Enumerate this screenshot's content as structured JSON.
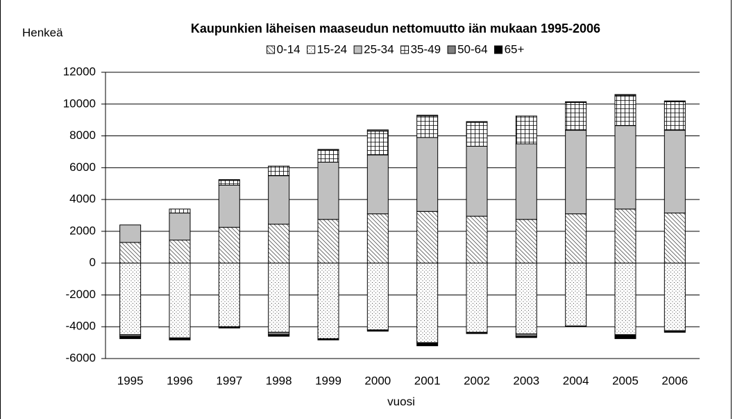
{
  "chart_data": {
    "type": "bar",
    "stacked": true,
    "title": "Kaupunkien läheisen maaseudun nettomuutto iän mukaan 1995-2006",
    "y_label": "Henkeä",
    "x_label": "vuosi",
    "categories": [
      "1995",
      "1996",
      "1997",
      "1998",
      "1999",
      "2000",
      "2001",
      "2002",
      "2003",
      "2004",
      "2005",
      "2006"
    ],
    "series": [
      {
        "name": "0-14",
        "color": "#ffffff",
        "values": [
          1300,
          1450,
          2250,
          2450,
          2750,
          3100,
          3250,
          2950,
          2750,
          3100,
          3400,
          3150
        ]
      },
      {
        "name": "15-24",
        "color": "#ffffff",
        "values": [
          -4500,
          -4700,
          -4000,
          -4350,
          -4750,
          -4200,
          -5000,
          -4350,
          -4450,
          -3950,
          -4500,
          -4250
        ]
      },
      {
        "name": "25-34",
        "color": "#c0c0c0",
        "values": [
          1100,
          1700,
          2650,
          3050,
          3600,
          3700,
          4650,
          4400,
          4750,
          5250,
          5250,
          5200
        ]
      },
      {
        "name": "35-49",
        "color": "#ffffff",
        "values": [
          0,
          250,
          300,
          600,
          750,
          1500,
          1350,
          1500,
          1750,
          1750,
          1900,
          1800
        ]
      },
      {
        "name": "50-64",
        "color": "#808080",
        "values": [
          -100,
          -50,
          50,
          -150,
          50,
          80,
          50,
          50,
          -150,
          50,
          50,
          50
        ]
      },
      {
        "name": "65+",
        "color": "#000000",
        "values": [
          -150,
          -80,
          -80,
          -100,
          -80,
          -80,
          -200,
          -80,
          -80,
          -30,
          -250,
          -100
        ]
      }
    ],
    "ylim": [
      -6000,
      12000
    ],
    "yticks": [
      -6000,
      -4000,
      -2000,
      0,
      2000,
      4000,
      6000,
      8000,
      10000,
      12000
    ],
    "grid": true,
    "legend": "top"
  }
}
